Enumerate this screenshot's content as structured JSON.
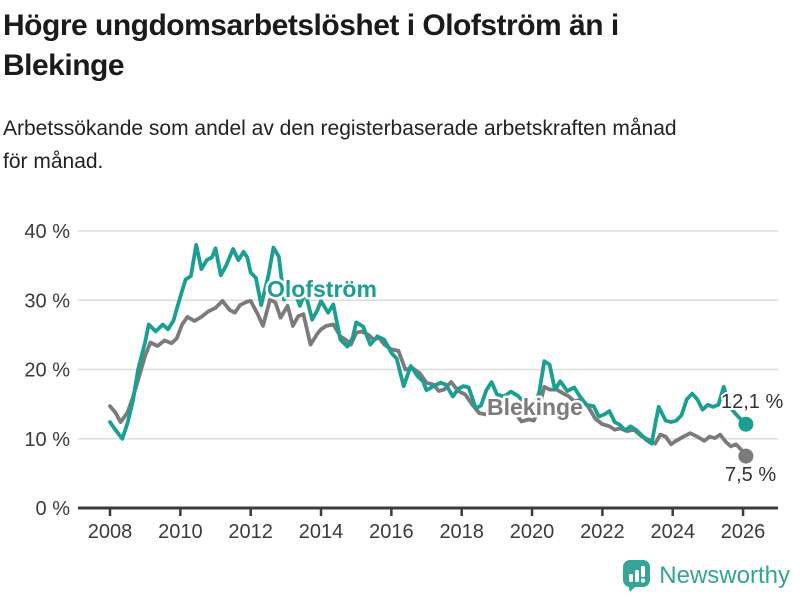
{
  "header": {
    "title": "Högre ungdomsarbetslöshet i Olofström än i Blekinge",
    "title_lines": [
      "Högre ungdomsarbetslöshet i Olofström än i",
      "Blekinge"
    ],
    "subtitle": "Arbetssökande som andel av den registerbaserade arbetskraften månad för månad.",
    "subtitle_lines": [
      "Arbetssökande som andel av den registerbaserade arbetskraften månad",
      "för månad."
    ]
  },
  "colors": {
    "olofstrom": "#1A9F92",
    "blekinge": "#7B7B7B",
    "gridline": "#DDDDDD",
    "axis": "#3C3C3C",
    "tick_label": "#3B3B3B",
    "value_label": "#333333",
    "logo": "#36A597"
  },
  "chart_data": {
    "type": "line",
    "title": "Högre ungdomsarbetslöshet i Olofström än i Blekinge",
    "subtitle": "Arbetssökande som andel av den registerbaserade arbetskraften månad för månad.",
    "grid": "horizontal",
    "x_range": [
      2008,
      2026.3
    ],
    "ylim": [
      0,
      40
    ],
    "y_ticks": [
      {
        "value": 0,
        "label": "0 %"
      },
      {
        "value": 10,
        "label": "10 %"
      },
      {
        "value": 20,
        "label": "20 %"
      },
      {
        "value": 30,
        "label": "30 %"
      },
      {
        "value": 40,
        "label": "40 %"
      }
    ],
    "x_ticks": [
      {
        "value": 2008,
        "label": "2008"
      },
      {
        "value": 2010,
        "label": "2010"
      },
      {
        "value": 2012,
        "label": "2012"
      },
      {
        "value": 2014,
        "label": "2014"
      },
      {
        "value": 2016,
        "label": "2016"
      },
      {
        "value": 2018,
        "label": "2018"
      },
      {
        "value": 2020,
        "label": "2020"
      },
      {
        "value": 2022,
        "label": "2022"
      },
      {
        "value": 2024,
        "label": "2024"
      },
      {
        "value": 2026,
        "label": "2026"
      }
    ],
    "legend_position": "inline-labels",
    "series": [
      {
        "name": "Blekinge",
        "color": "#7B7B7B",
        "end_label": "7,5 %",
        "end_value": 7.5,
        "points": [
          [
            2008.0,
            14.7
          ],
          [
            2008.15,
            13.8
          ],
          [
            2008.3,
            12.4
          ],
          [
            2008.5,
            13.8
          ],
          [
            2008.65,
            16.0
          ],
          [
            2008.8,
            18.5
          ],
          [
            2009.0,
            22.0
          ],
          [
            2009.15,
            23.9
          ],
          [
            2009.35,
            23.4
          ],
          [
            2009.55,
            24.2
          ],
          [
            2009.75,
            23.8
          ],
          [
            2009.9,
            24.5
          ],
          [
            2010.05,
            26.5
          ],
          [
            2010.2,
            27.6
          ],
          [
            2010.4,
            27.0
          ],
          [
            2010.6,
            27.6
          ],
          [
            2010.8,
            28.4
          ],
          [
            2011.0,
            28.9
          ],
          [
            2011.2,
            29.9
          ],
          [
            2011.4,
            28.6
          ],
          [
            2011.55,
            28.2
          ],
          [
            2011.7,
            29.3
          ],
          [
            2011.9,
            29.8
          ],
          [
            2012.0,
            29.9
          ],
          [
            2012.2,
            28.0
          ],
          [
            2012.35,
            26.3
          ],
          [
            2012.55,
            30.1
          ],
          [
            2012.7,
            29.7
          ],
          [
            2012.85,
            27.5
          ],
          [
            2013.05,
            29.2
          ],
          [
            2013.2,
            26.3
          ],
          [
            2013.35,
            27.7
          ],
          [
            2013.5,
            28.0
          ],
          [
            2013.7,
            23.6
          ],
          [
            2013.9,
            25.2
          ],
          [
            2014.0,
            25.8
          ],
          [
            2014.15,
            26.3
          ],
          [
            2014.35,
            26.5
          ],
          [
            2014.55,
            24.8
          ],
          [
            2014.7,
            24.3
          ],
          [
            2014.85,
            23.6
          ],
          [
            2015.0,
            25.3
          ],
          [
            2015.15,
            25.5
          ],
          [
            2015.35,
            25.0
          ],
          [
            2015.5,
            24.3
          ],
          [
            2015.65,
            24.6
          ],
          [
            2015.8,
            23.6
          ],
          [
            2016.0,
            22.9
          ],
          [
            2016.2,
            22.7
          ],
          [
            2016.4,
            20.0
          ],
          [
            2016.6,
            20.2
          ],
          [
            2016.8,
            19.5
          ],
          [
            2017.0,
            18.1
          ],
          [
            2017.2,
            17.8
          ],
          [
            2017.35,
            16.9
          ],
          [
            2017.5,
            17.1
          ],
          [
            2017.7,
            18.2
          ],
          [
            2017.9,
            16.9
          ],
          [
            2018.1,
            16.4
          ],
          [
            2018.3,
            14.9
          ],
          [
            2018.5,
            13.7
          ],
          [
            2018.7,
            13.5
          ],
          [
            2018.9,
            14.5
          ],
          [
            2019.1,
            14.2
          ],
          [
            2019.3,
            14.0
          ],
          [
            2019.5,
            13.8
          ],
          [
            2019.7,
            12.5
          ],
          [
            2019.9,
            12.8
          ],
          [
            2020.05,
            12.6
          ],
          [
            2020.2,
            14.5
          ],
          [
            2020.35,
            17.5
          ],
          [
            2020.5,
            17.1
          ],
          [
            2020.7,
            17.1
          ],
          [
            2020.9,
            16.5
          ],
          [
            2021.05,
            16.1
          ],
          [
            2021.2,
            15.4
          ],
          [
            2021.4,
            15.7
          ],
          [
            2021.6,
            14.6
          ],
          [
            2021.8,
            12.9
          ],
          [
            2022.0,
            12.1
          ],
          [
            2022.2,
            11.8
          ],
          [
            2022.35,
            11.3
          ],
          [
            2022.5,
            11.5
          ],
          [
            2022.7,
            11.1
          ],
          [
            2022.9,
            11.3
          ],
          [
            2023.1,
            10.4
          ],
          [
            2023.3,
            9.9
          ],
          [
            2023.5,
            9.3
          ],
          [
            2023.65,
            10.6
          ],
          [
            2023.8,
            10.3
          ],
          [
            2023.95,
            9.2
          ],
          [
            2024.1,
            9.7
          ],
          [
            2024.3,
            10.3
          ],
          [
            2024.5,
            10.8
          ],
          [
            2024.7,
            10.3
          ],
          [
            2024.9,
            9.7
          ],
          [
            2025.05,
            10.3
          ],
          [
            2025.2,
            10.1
          ],
          [
            2025.35,
            10.6
          ],
          [
            2025.5,
            9.6
          ],
          [
            2025.65,
            8.9
          ],
          [
            2025.8,
            9.2
          ],
          [
            2025.95,
            8.4
          ],
          [
            2026.08,
            7.5
          ]
        ]
      },
      {
        "name": "Olofström",
        "color": "#1A9F92",
        "end_label": "12,1 %",
        "end_value": 12.1,
        "points": [
          [
            2008.0,
            12.4
          ],
          [
            2008.15,
            11.3
          ],
          [
            2008.35,
            10.0
          ],
          [
            2008.5,
            12.3
          ],
          [
            2008.65,
            15.5
          ],
          [
            2008.8,
            20.0
          ],
          [
            2009.0,
            24.0
          ],
          [
            2009.1,
            26.5
          ],
          [
            2009.3,
            25.5
          ],
          [
            2009.5,
            26.5
          ],
          [
            2009.65,
            25.8
          ],
          [
            2009.8,
            27.0
          ],
          [
            2010.0,
            30.5
          ],
          [
            2010.15,
            33.0
          ],
          [
            2010.3,
            33.5
          ],
          [
            2010.45,
            38.0
          ],
          [
            2010.6,
            34.5
          ],
          [
            2010.75,
            35.8
          ],
          [
            2010.9,
            36.2
          ],
          [
            2011.0,
            37.5
          ],
          [
            2011.15,
            33.6
          ],
          [
            2011.3,
            35.0
          ],
          [
            2011.5,
            37.4
          ],
          [
            2011.65,
            35.8
          ],
          [
            2011.8,
            37.0
          ],
          [
            2011.9,
            36.2
          ],
          [
            2012.0,
            34.0
          ],
          [
            2012.15,
            33.2
          ],
          [
            2012.3,
            29.3
          ],
          [
            2012.5,
            33.5
          ],
          [
            2012.65,
            37.6
          ],
          [
            2012.8,
            36.3
          ],
          [
            2012.95,
            30.1
          ],
          [
            2013.1,
            32.3
          ],
          [
            2013.25,
            31.3
          ],
          [
            2013.4,
            29.2
          ],
          [
            2013.55,
            31.1
          ],
          [
            2013.75,
            27.2
          ],
          [
            2013.9,
            28.6
          ],
          [
            2014.0,
            29.9
          ],
          [
            2014.2,
            28.2
          ],
          [
            2014.35,
            29.4
          ],
          [
            2014.55,
            24.3
          ],
          [
            2014.75,
            23.3
          ],
          [
            2014.9,
            24.6
          ],
          [
            2015.0,
            26.8
          ],
          [
            2015.2,
            26.2
          ],
          [
            2015.4,
            23.6
          ],
          [
            2015.6,
            24.8
          ],
          [
            2015.8,
            24.3
          ],
          [
            2016.0,
            22.4
          ],
          [
            2016.15,
            21.6
          ],
          [
            2016.35,
            17.6
          ],
          [
            2016.55,
            20.5
          ],
          [
            2016.75,
            19.0
          ],
          [
            2016.9,
            18.3
          ],
          [
            2017.0,
            17.0
          ],
          [
            2017.2,
            17.6
          ],
          [
            2017.4,
            18.1
          ],
          [
            2017.55,
            17.8
          ],
          [
            2017.75,
            16.1
          ],
          [
            2017.9,
            17.2
          ],
          [
            2018.05,
            17.6
          ],
          [
            2018.2,
            17.4
          ],
          [
            2018.4,
            14.4
          ],
          [
            2018.55,
            14.8
          ],
          [
            2018.7,
            17.0
          ],
          [
            2018.85,
            18.2
          ],
          [
            2019.0,
            16.4
          ],
          [
            2019.2,
            16.1
          ],
          [
            2019.4,
            16.8
          ],
          [
            2019.6,
            16.2
          ],
          [
            2019.8,
            15.0
          ],
          [
            2020.0,
            14.2
          ],
          [
            2020.2,
            16.6
          ],
          [
            2020.35,
            21.2
          ],
          [
            2020.5,
            20.7
          ],
          [
            2020.65,
            17.1
          ],
          [
            2020.8,
            18.3
          ],
          [
            2021.0,
            16.9
          ],
          [
            2021.2,
            17.4
          ],
          [
            2021.35,
            16.2
          ],
          [
            2021.55,
            14.9
          ],
          [
            2021.75,
            14.7
          ],
          [
            2021.9,
            13.2
          ],
          [
            2022.05,
            13.5
          ],
          [
            2022.2,
            14.0
          ],
          [
            2022.35,
            12.4
          ],
          [
            2022.5,
            12.0
          ],
          [
            2022.65,
            11.2
          ],
          [
            2022.8,
            11.8
          ],
          [
            2022.95,
            11.3
          ],
          [
            2023.1,
            10.6
          ],
          [
            2023.25,
            9.8
          ],
          [
            2023.4,
            9.3
          ],
          [
            2023.5,
            12.0
          ],
          [
            2023.6,
            14.6
          ],
          [
            2023.8,
            12.6
          ],
          [
            2023.95,
            12.4
          ],
          [
            2024.1,
            12.6
          ],
          [
            2024.25,
            13.4
          ],
          [
            2024.4,
            15.7
          ],
          [
            2024.55,
            16.5
          ],
          [
            2024.7,
            15.7
          ],
          [
            2024.85,
            14.2
          ],
          [
            2025.0,
            14.9
          ],
          [
            2025.15,
            14.6
          ],
          [
            2025.3,
            14.9
          ],
          [
            2025.45,
            17.5
          ],
          [
            2025.6,
            14.8
          ],
          [
            2025.75,
            13.8
          ],
          [
            2025.9,
            13.0
          ],
          [
            2026.08,
            12.1
          ]
        ]
      }
    ]
  },
  "footer": {
    "brand": "Newsworthy"
  }
}
